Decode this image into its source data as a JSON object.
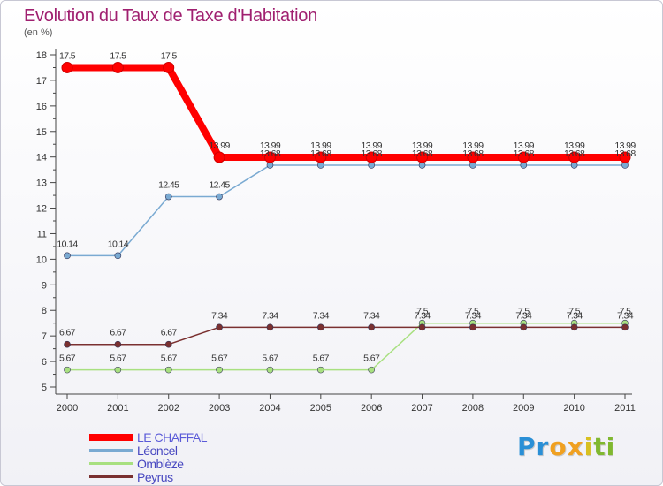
{
  "title": "Evolution du Taux de Taxe d'Habitation",
  "subtitle": "(en %)",
  "brand": {
    "letters": [
      "P",
      "r",
      "o",
      "x",
      "i",
      "t",
      "i"
    ],
    "colors": [
      "#2a8fd6",
      "#2a8fd6",
      "#f0a020",
      "#f0a020",
      "#d8c020",
      "#80b830",
      "#80b830"
    ]
  },
  "chart_data": {
    "type": "line",
    "title": "Evolution du Taux de Taxe d'Habitation",
    "ylabel": "(en %)",
    "xlabel": "",
    "x": [
      "2000",
      "2001",
      "2002",
      "2003",
      "2004",
      "2005",
      "2006",
      "2007",
      "2008",
      "2009",
      "2010",
      "2011"
    ],
    "ylim": [
      5,
      18
    ],
    "yticks": [
      "5",
      "6",
      "7",
      "8",
      "9",
      "10",
      "11",
      "12",
      "13",
      "14",
      "15",
      "16",
      "17",
      "18"
    ],
    "grid": false,
    "legend_position": "bottom-left",
    "series": [
      {
        "name": "LE CHAFFAL",
        "color": "#ff0000",
        "values": [
          17.5,
          17.5,
          17.5,
          13.99,
          13.99,
          13.99,
          13.99,
          13.99,
          13.99,
          13.99,
          13.99,
          13.99
        ],
        "labels": [
          "17.5",
          "17.5",
          "17.5",
          "13.99",
          "13.99",
          "13.99",
          "13.99",
          "13.99",
          "13.99",
          "13.99",
          "13.99",
          "13.99"
        ]
      },
      {
        "name": "Léoncel",
        "color": "#7aaad2",
        "values": [
          10.14,
          10.14,
          12.45,
          12.45,
          13.68,
          13.68,
          13.68,
          13.68,
          13.68,
          13.68,
          13.68,
          13.68
        ],
        "labels": [
          "10.14",
          "10.14",
          "12.45",
          "12.45",
          "13.68",
          "13.68",
          "13.68",
          "13.68",
          "13.68",
          "13.68",
          "13.68",
          "13.68"
        ]
      },
      {
        "name": "Omblèze",
        "color": "#a8e080",
        "values": [
          5.67,
          5.67,
          5.67,
          5.67,
          5.67,
          5.67,
          5.67,
          7.5,
          7.5,
          7.5,
          7.5,
          7.5
        ],
        "labels": [
          "5.67",
          "5.67",
          "5.67",
          "5.67",
          "5.67",
          "5.67",
          "5.67",
          "7.5",
          "7.5",
          "7.5",
          "7.5",
          "7.5"
        ]
      },
      {
        "name": "Peyrus",
        "color": "#7a3030",
        "values": [
          6.67,
          6.67,
          6.67,
          7.34,
          7.34,
          7.34,
          7.34,
          7.34,
          7.34,
          7.34,
          7.34,
          7.34
        ],
        "labels": [
          "6.67",
          "6.67",
          "6.67",
          "7.34",
          "7.34",
          "7.34",
          "7.34",
          "7.34",
          "7.34",
          "7.34",
          "7.34",
          "7.34"
        ]
      }
    ]
  }
}
